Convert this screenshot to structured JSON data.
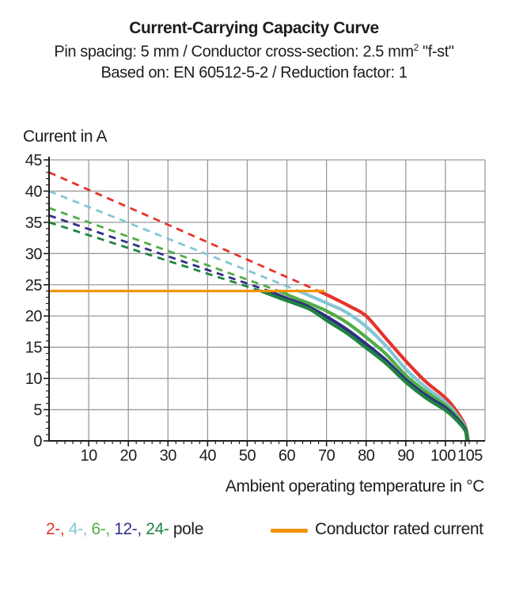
{
  "header": {
    "title": "Current-Carrying Capacity Curve",
    "subtitle1_prefix": "Pin spacing: 5 mm / Conductor cross-section: 2.5 mm",
    "subtitle1_sup": "2",
    "subtitle1_suffix": " \"f-st\"",
    "subtitle2": "Based on: EN 60512-5-2 / Reduction factor: 1"
  },
  "axes": {
    "y_title": "Current in A",
    "x_title": "Ambient operating temperature in °C"
  },
  "legend": {
    "poles": [
      {
        "label": "2-",
        "color": "#e5332a"
      },
      {
        "label": "4-",
        "color": "#84c6d4"
      },
      {
        "label": "6-",
        "color": "#4fae46"
      },
      {
        "label": "12-",
        "color": "#312e85"
      },
      {
        "label": "24-",
        "color": "#1f8440"
      }
    ],
    "separator": ", ",
    "poles_suffix": " pole",
    "rated_label": "Conductor rated current",
    "rated_color": "#f29200"
  },
  "chart_data": {
    "type": "line",
    "title": "Current-Carrying Capacity Curve",
    "xlabel": "Ambient operating temperature in °C",
    "ylabel": "Current in A",
    "xlim": [
      0,
      110
    ],
    "ylim": [
      0,
      45
    ],
    "x_ticks": [
      10,
      20,
      30,
      40,
      50,
      60,
      70,
      80,
      90,
      100,
      105
    ],
    "y_ticks": [
      0,
      5,
      10,
      15,
      20,
      25,
      30,
      35,
      40,
      45
    ],
    "x_minor_step": 2,
    "y_minor_step": 1,
    "grid": true,
    "grid_color": "#9b9b9b",
    "axis_color": "#1d1d1b",
    "rated_current": {
      "label": "Conductor rated current",
      "value": 24,
      "x_start": 0,
      "x_end": 69.5,
      "color": "#f29200"
    },
    "series": [
      {
        "name": "2-pole",
        "color": "#e5332a",
        "dashed_segment": {
          "from": [
            0,
            43
          ],
          "to": [
            68,
            24
          ]
        },
        "solid_points": [
          [
            68,
            24
          ],
          [
            72,
            22.8
          ],
          [
            76,
            21.5
          ],
          [
            80,
            20
          ],
          [
            85,
            16.4
          ],
          [
            90,
            12.8
          ],
          [
            95,
            9.5
          ],
          [
            100,
            6.9
          ],
          [
            103,
            4.6
          ],
          [
            105,
            2.4
          ],
          [
            105.8,
            0
          ]
        ]
      },
      {
        "name": "4-pole",
        "color": "#84c6d4",
        "dashed_segment": {
          "from": [
            0,
            40
          ],
          "to": [
            63,
            24
          ]
        },
        "solid_points": [
          [
            63,
            24
          ],
          [
            67,
            22.9
          ],
          [
            71,
            21.8
          ],
          [
            75,
            20.6
          ],
          [
            80,
            18.3
          ],
          [
            85,
            15.2
          ],
          [
            90,
            11.5
          ],
          [
            95,
            8.6
          ],
          [
            100,
            6.2
          ],
          [
            103,
            4.1
          ],
          [
            105,
            2.2
          ],
          [
            105.7,
            0
          ]
        ]
      },
      {
        "name": "6-pole",
        "color": "#4fae46",
        "dashed_segment": {
          "from": [
            0,
            37.3
          ],
          "to": [
            58,
            24
          ]
        },
        "solid_points": [
          [
            58,
            24
          ],
          [
            62,
            22.9
          ],
          [
            66,
            21.9
          ],
          [
            70,
            20.8
          ],
          [
            75,
            19
          ],
          [
            80,
            16.6
          ],
          [
            85,
            13.9
          ],
          [
            90,
            10.5
          ],
          [
            95,
            7.9
          ],
          [
            100,
            5.7
          ],
          [
            103,
            3.8
          ],
          [
            105,
            2
          ],
          [
            105.6,
            0
          ]
        ]
      },
      {
        "name": "12-pole",
        "color": "#312e85",
        "dashed_segment": {
          "from": [
            0,
            36.1
          ],
          "to": [
            55.5,
            24
          ]
        },
        "solid_points": [
          [
            55.5,
            24
          ],
          [
            60,
            22.8
          ],
          [
            65,
            21.6
          ],
          [
            70,
            19.9
          ],
          [
            75,
            17.9
          ],
          [
            80,
            15.5
          ],
          [
            85,
            12.9
          ],
          [
            90,
            9.8
          ],
          [
            95,
            7.3
          ],
          [
            100,
            5.3
          ],
          [
            103,
            3.5
          ],
          [
            105,
            1.8
          ],
          [
            105.5,
            0
          ]
        ]
      },
      {
        "name": "24-pole",
        "color": "#1f8440",
        "dashed_segment": {
          "from": [
            0,
            35
          ],
          "to": [
            53.5,
            24
          ]
        },
        "solid_points": [
          [
            53.5,
            24
          ],
          [
            58,
            22.9
          ],
          [
            62,
            22
          ],
          [
            66,
            21
          ],
          [
            70,
            19.3
          ],
          [
            75,
            17.3
          ],
          [
            80,
            14.9
          ],
          [
            85,
            12.4
          ],
          [
            90,
            9.4
          ],
          [
            95,
            6.9
          ],
          [
            100,
            4.9
          ],
          [
            103,
            3.2
          ],
          [
            105,
            1.6
          ],
          [
            105.4,
            0
          ]
        ]
      }
    ]
  }
}
